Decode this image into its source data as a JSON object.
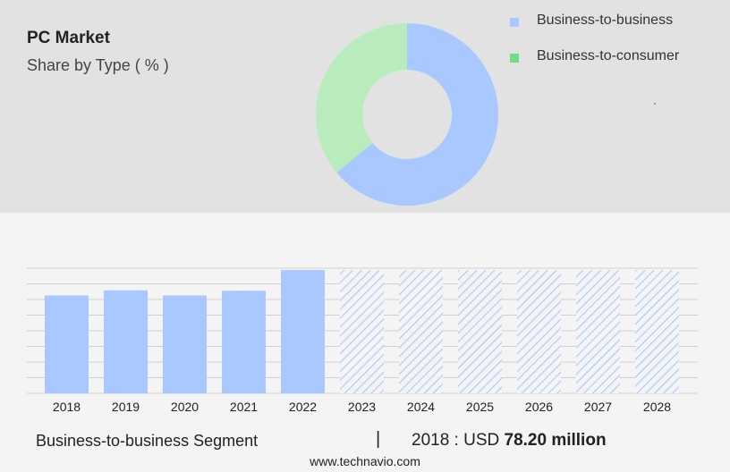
{
  "header": {
    "title": "PC Market",
    "subtitle": "Share by Type ( % )"
  },
  "colors": {
    "b2b": "#a8c8ff",
    "b2c": "#b9ecbd",
    "b2c_legend": "#6ddf86",
    "forecast_hatch": "#a8c8ff"
  },
  "chart_data": [
    {
      "type": "pie",
      "title": "",
      "labels": [
        "Business-to-business",
        "Business-to-consumer"
      ],
      "values": [
        64,
        36
      ],
      "donut": true,
      "legend": "top-right"
    },
    {
      "type": "bar",
      "categories": [
        "2018",
        "2019",
        "2020",
        "2021",
        "2022",
        "2023",
        "2024",
        "2025",
        "2026",
        "2027",
        "2028"
      ],
      "values": [
        78.2,
        82.3,
        78.2,
        82.0,
        98.5,
        98.5,
        98.5,
        98.5,
        98.5,
        98.5,
        98.5
      ],
      "forecast_from_index": 5,
      "ylim": [
        0,
        100
      ],
      "grid": true,
      "xlabel": "",
      "ylabel": ""
    }
  ],
  "footer": {
    "segment_label": "Business-to-business Segment",
    "separator": "|",
    "year_text": "2018 : USD ",
    "value_text": "78.20 million",
    "website": "www.technavio.com"
  }
}
